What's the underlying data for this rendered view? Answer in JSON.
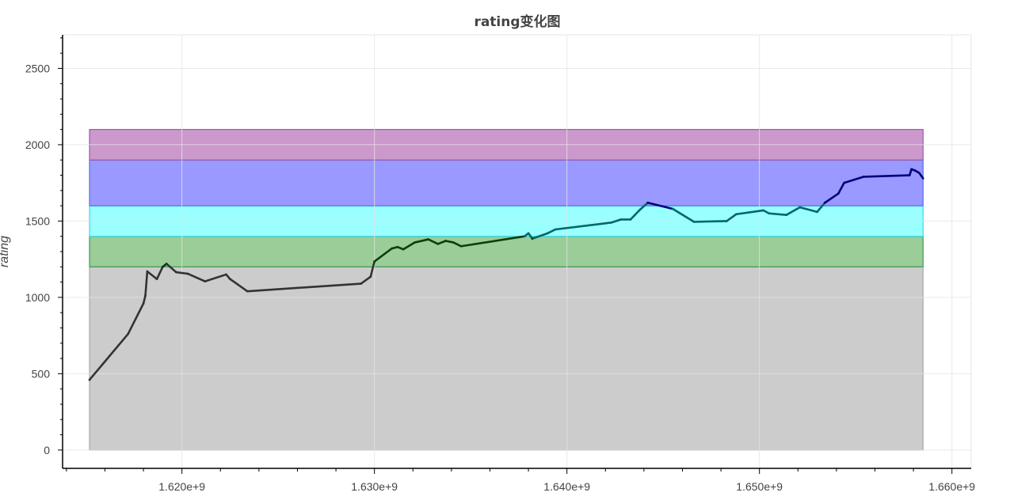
{
  "chart_data": {
    "type": "line",
    "title": "rating变化图",
    "xlabel": "",
    "ylabel": "rating",
    "xlim": [
      1613800000,
      1661000000
    ],
    "ylim": [
      -120,
      2720
    ],
    "grid": true,
    "x_tick_values": [
      1620000000,
      1630000000,
      1640000000,
      1650000000,
      1660000000
    ],
    "x_tick_labels": [
      "1.620e+9",
      "1.630e+9",
      "1.640e+9",
      "1.650e+9",
      "1.660e+9"
    ],
    "y_tick_values": [
      0,
      500,
      1000,
      1500,
      2000,
      2500
    ],
    "y_tick_labels": [
      "0",
      "500",
      "1000",
      "1500",
      "2000",
      "2500"
    ],
    "bands": [
      {
        "y0": 0,
        "y1": 1200,
        "color": "#cccccc",
        "border": "#a9a9a9"
      },
      {
        "y0": 1200,
        "y1": 1400,
        "color": "#9acd98",
        "border": "#3c9a5a"
      },
      {
        "y0": 1400,
        "y1": 1600,
        "color": "#99ffff",
        "border": "#3fd8e8"
      },
      {
        "y0": 1600,
        "y1": 1900,
        "color": "#9999ff",
        "border": "#5a6ee0"
      },
      {
        "y0": 1900,
        "y1": 2100,
        "color": "#cc99cc",
        "border": "#9a5aa8"
      }
    ],
    "band_x_range": [
      1615200000,
      1658500000
    ],
    "series": [
      {
        "color": "#333333",
        "x": [
          1615200000,
          1617200000,
          1618000000,
          1618100000,
          1618200000,
          1618700000,
          1619000000,
          1619200000,
          1619700000,
          1620300000,
          1621200000,
          1622300000,
          1622500000,
          1623400000,
          1629300000,
          1629800000,
          1630000000,
          1630900000,
          1631200000,
          1631500000,
          1632100000,
          1632800000,
          1633300000,
          1633700000,
          1634100000,
          1634500000,
          1637800000,
          1638000000,
          1638200000,
          1639000000,
          1639400000,
          1642300000,
          1642800000,
          1643300000,
          1643800000,
          1644200000,
          1645500000,
          1646600000,
          1648300000,
          1648800000,
          1650200000,
          1650500000,
          1651400000,
          1652100000,
          1653000000,
          1653400000,
          1654100000,
          1654400000,
          1655400000,
          1657800000,
          1657900000,
          1658100000,
          1658300000,
          1658500000
        ],
        "y": [
          460,
          760,
          960,
          1010,
          1170,
          1120,
          1200,
          1220,
          1165,
          1155,
          1105,
          1150,
          1120,
          1040,
          1090,
          1135,
          1235,
          1320,
          1330,
          1315,
          1360,
          1380,
          1350,
          1370,
          1360,
          1335,
          1400,
          1420,
          1385,
          1420,
          1445,
          1490,
          1510,
          1510,
          1575,
          1620,
          1580,
          1495,
          1500,
          1545,
          1570,
          1550,
          1540,
          1590,
          1560,
          1620,
          1680,
          1750,
          1790,
          1800,
          1840,
          1830,
          1815,
          1780
        ]
      }
    ]
  }
}
